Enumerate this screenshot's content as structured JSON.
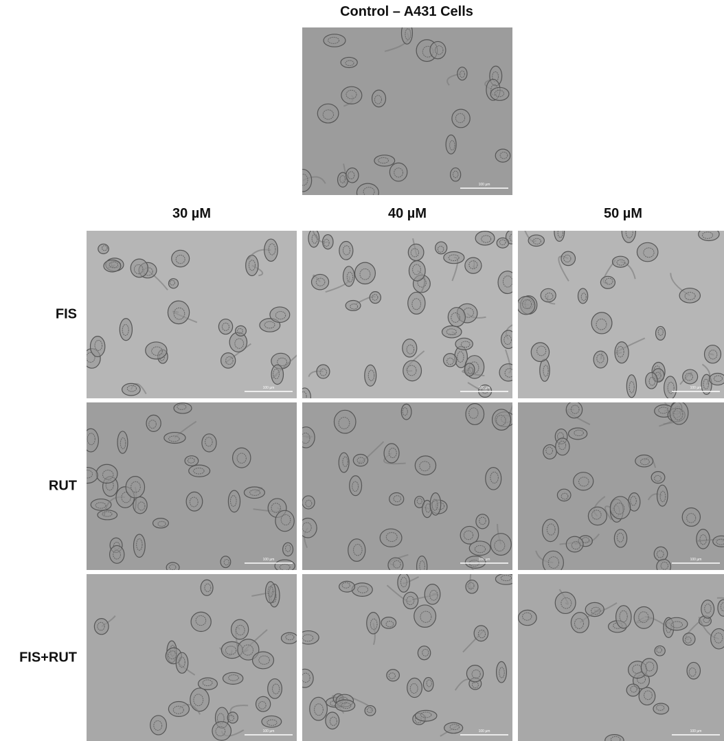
{
  "control": {
    "title": "Control – A431 Cells",
    "scale_bar": "100 µm"
  },
  "grid": {
    "columns": [
      "30 µM",
      "40 µM",
      "50 µM"
    ],
    "rows": [
      {
        "label": "FIS",
        "scale_bars": [
          "100 µm",
          "100 µm",
          "100 µm"
        ]
      },
      {
        "label": "RUT",
        "scale_bars": [
          "100 µm",
          "100 µm",
          "100 µm"
        ]
      },
      {
        "label": "FIS+RUT",
        "scale_bars": [
          "100 µm",
          "100 µm",
          "100 µm"
        ]
      }
    ]
  }
}
